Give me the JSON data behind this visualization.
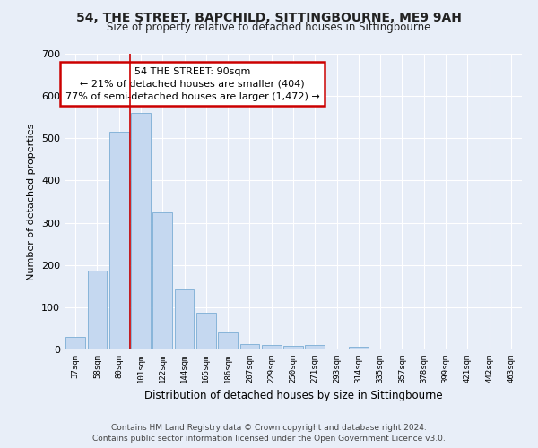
{
  "title": "54, THE STREET, BAPCHILD, SITTINGBOURNE, ME9 9AH",
  "subtitle": "Size of property relative to detached houses in Sittingbourne",
  "xlabel": "Distribution of detached houses by size in Sittingbourne",
  "ylabel": "Number of detached properties",
  "footer_line1": "Contains HM Land Registry data © Crown copyright and database right 2024.",
  "footer_line2": "Contains public sector information licensed under the Open Government Licence v3.0.",
  "categories": [
    "37sqm",
    "58sqm",
    "80sqm",
    "101sqm",
    "122sqm",
    "144sqm",
    "165sqm",
    "186sqm",
    "207sqm",
    "229sqm",
    "250sqm",
    "271sqm",
    "293sqm",
    "314sqm",
    "335sqm",
    "357sqm",
    "378sqm",
    "399sqm",
    "421sqm",
    "442sqm",
    "463sqm"
  ],
  "values": [
    30,
    187,
    515,
    560,
    325,
    142,
    87,
    40,
    13,
    10,
    8,
    10,
    0,
    7,
    0,
    0,
    0,
    0,
    0,
    0,
    0
  ],
  "bar_color": "#c5d8f0",
  "bar_edge_color": "#7aadd4",
  "background_color": "#e8eef8",
  "grid_color": "#ffffff",
  "vline_x": 2.5,
  "vline_color": "#cc0000",
  "annotation_line1": "54 THE STREET: 90sqm",
  "annotation_line2": "← 21% of detached houses are smaller (404)",
  "annotation_line3": "77% of semi-detached houses are larger (1,472) →",
  "annotation_box_color": "#ffffff",
  "annotation_box_edge": "#cc0000",
  "ylim": [
    0,
    700
  ],
  "yticks": [
    0,
    100,
    200,
    300,
    400,
    500,
    600,
    700
  ]
}
